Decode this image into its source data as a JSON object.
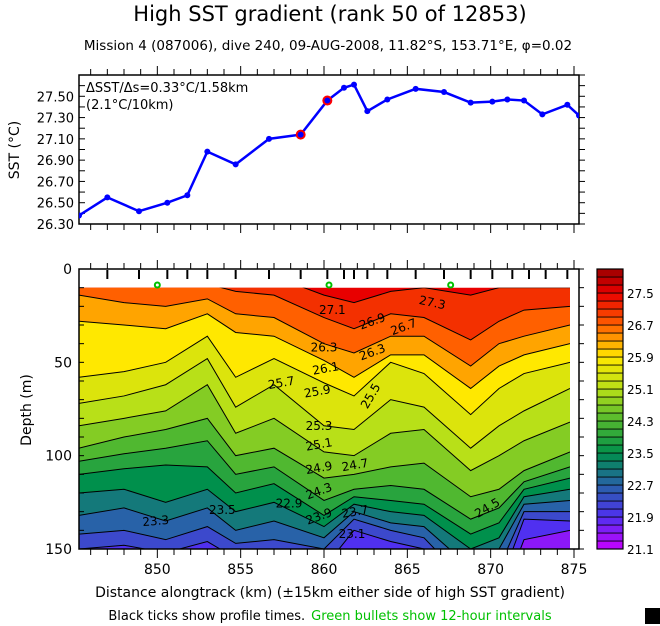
{
  "title": "High SST gradient (rank 50 of 12853)",
  "subtitle": "Mission 4 (087006),  dive 240,  09-AUG-2008,  11.82°S, 153.71°E,  φ=0.02",
  "footer": {
    "black_note": "Black ticks show profile times.",
    "green_note": "Green bullets show 12-hour intervals",
    "green_color": "#00c000"
  },
  "chart_data": [
    {
      "type": "line",
      "ylabel": "SST (°C)",
      "xlim": [
        845.3,
        875.3
      ],
      "ylim": [
        26.3,
        27.7
      ],
      "yticks": [
        "26.30",
        "26.50",
        "26.70",
        "26.90",
        "27.10",
        "27.30",
        "27.50"
      ],
      "annotation": [
        "ΔSST/Δs=0.33°C/1.58km",
        "(2.1°C/10km)"
      ],
      "line_color": "#0000ff",
      "highlight_color": "#ff0000",
      "x": [
        845.3,
        847.0,
        848.9,
        850.6,
        851.8,
        853.0,
        854.7,
        856.7,
        858.6,
        860.2,
        861.2,
        861.8,
        862.6,
        863.8,
        865.5,
        867.2,
        868.8,
        870.1,
        871.0,
        872.0,
        873.1,
        874.6,
        875.3
      ],
      "y": [
        26.38,
        26.55,
        26.42,
        26.5,
        26.57,
        26.98,
        26.86,
        27.1,
        27.14,
        27.46,
        27.58,
        27.61,
        27.36,
        27.47,
        27.57,
        27.54,
        27.44,
        27.45,
        27.47,
        27.46,
        27.33,
        27.42,
        27.32
      ],
      "highlighted_points": [
        8,
        9
      ]
    },
    {
      "type": "contour",
      "xlabel": "Distance alongtrack (km) (±15km either side of high SST gradient)",
      "ylabel": "Depth (m)",
      "xlim": [
        845.3,
        875.3
      ],
      "ylim": [
        150,
        0
      ],
      "xticks": [
        "850",
        "855",
        "860",
        "865",
        "870",
        "875"
      ],
      "yticks": [
        "0",
        "50",
        "100",
        "150"
      ],
      "profile_times_km": [
        847.0,
        848.9,
        850.6,
        851.8,
        853.0,
        854.7,
        856.7,
        858.6,
        860.2,
        861.2,
        861.8,
        862.6,
        863.8,
        865.5,
        867.2,
        868.8,
        870.1,
        871.3,
        872.3,
        873.3,
        874.6
      ],
      "green_bullets_km": [
        850.0,
        860.3,
        867.6
      ],
      "isotherms": [
        27.3,
        26.9,
        26.5,
        26.1,
        25.7,
        25.3,
        24.9,
        24.5,
        24.1,
        23.7,
        23.3,
        22.9,
        22.5,
        22.1,
        21.7
      ],
      "profiles": [
        {
          "x": 845.3,
          "depths": [
            0,
            0,
            14,
            28,
            58,
            72,
            84,
            96,
            103,
            110,
            120,
            132,
            142,
            150,
            160
          ]
        },
        {
          "x": 848.0,
          "depths": [
            0,
            0,
            18,
            30,
            55,
            68,
            80,
            90,
            99,
            107,
            118,
            128,
            140,
            148,
            160
          ]
        },
        {
          "x": 850.5,
          "depths": [
            0,
            0,
            20,
            32,
            50,
            62,
            76,
            86,
            96,
            105,
            125,
            135,
            145,
            152,
            165
          ]
        },
        {
          "x": 853.0,
          "depths": [
            0,
            8,
            16,
            24,
            36,
            48,
            62,
            80,
            92,
            106,
            118,
            128,
            138,
            146,
            160
          ]
        },
        {
          "x": 854.7,
          "depths": [
            0,
            12,
            24,
            34,
            58,
            74,
            88,
            100,
            110,
            120,
            130,
            140,
            147,
            155,
            165
          ]
        },
        {
          "x": 857.0,
          "depths": [
            4,
            14,
            26,
            36,
            48,
            62,
            80,
            96,
            106,
            115,
            125,
            135,
            145,
            150,
            162
          ]
        },
        {
          "x": 860.0,
          "depths": [
            14,
            26,
            40,
            49,
            61,
            84,
            98,
            112,
            124,
            132,
            138,
            144,
            150,
            160,
            170
          ]
        },
        {
          "x": 861.8,
          "depths": [
            18,
            32,
            45,
            58,
            68,
            86,
            100,
            110,
            118,
            122,
            126,
            130,
            134,
            140,
            150
          ]
        },
        {
          "x": 864.0,
          "depths": [
            12,
            24,
            36,
            46,
            50,
            70,
            88,
            106,
            116,
            124,
            130,
            136,
            140,
            146,
            155
          ]
        },
        {
          "x": 866.0,
          "depths": [
            10,
            26,
            36,
            46,
            56,
            74,
            86,
            104,
            118,
            126,
            132,
            138,
            144,
            150,
            160
          ]
        },
        {
          "x": 868.8,
          "depths": [
            14,
            38,
            52,
            64,
            78,
            96,
            108,
            122,
            134,
            142,
            150,
            160,
            170,
            180,
            190
          ]
        },
        {
          "x": 870.5,
          "depths": [
            10,
            28,
            40,
            52,
            64,
            84,
            100,
            118,
            128,
            136,
            144,
            150,
            160,
            170,
            180
          ]
        },
        {
          "x": 872.0,
          "depths": [
            10,
            22,
            36,
            46,
            56,
            76,
            92,
            108,
            114,
            118,
            122,
            126,
            130,
            134,
            145
          ]
        },
        {
          "x": 875.3,
          "depths": [
            10,
            20,
            30,
            40,
            50,
            64,
            82,
            98,
            106,
            112,
            118,
            124,
            130,
            135,
            140
          ]
        }
      ],
      "contour_labels": [
        {
          "text": "27.1",
          "x": 860.5,
          "d": 22,
          "rot": 0
        },
        {
          "text": "27.3",
          "x": 866.5,
          "d": 18,
          "rot": 12
        },
        {
          "text": "26.9",
          "x": 862.9,
          "d": 28,
          "rot": -20
        },
        {
          "text": "26.7",
          "x": 863.7,
          "d": 31,
          "rot": -20
        },
        {
          "text": "26.3",
          "x": 862.9,
          "d": 36,
          "rot": -20
        },
        {
          "text": "26.3",
          "x": 860.0,
          "d": 42,
          "rot": 0
        },
        {
          "text": "26.1",
          "x": 860.1,
          "d": 49,
          "rot": -10
        },
        {
          "text": "25.9",
          "x": 859.6,
          "d": 57,
          "rot": -10
        },
        {
          "text": "25.7",
          "x": 859.6,
          "d": 61,
          "rot": -10
        },
        {
          "text": "25.5",
          "x": 862.8,
          "d": 68,
          "rot": -60
        },
        {
          "text": "25.3",
          "x": 859.7,
          "d": 84,
          "rot": 0
        },
        {
          "text": "25.1",
          "x": 859.7,
          "d": 94,
          "rot": -10
        },
        {
          "text": "24.9",
          "x": 859.7,
          "d": 98,
          "rot": -10
        },
        {
          "text": "24.7",
          "x": 859.7,
          "d": 105,
          "rot": -10
        },
        {
          "text": "24.3",
          "x": 859.7,
          "d": 119,
          "rot": -20
        },
        {
          "text": "23.9",
          "x": 859.7,
          "d": 124,
          "rot": -20
        },
        {
          "text": "23.7",
          "x": 859.7,
          "d": 130,
          "rot": -10
        },
        {
          "text": "23.5",
          "x": 853.9,
          "d": 129,
          "rot": 0
        },
        {
          "text": "23.3",
          "x": 849.9,
          "d": 135,
          "rot": -5
        },
        {
          "text": "24.5",
          "x": 869.8,
          "d": 128,
          "rot": -30
        },
        {
          "text": "23.1",
          "x": 860.6,
          "d": 142,
          "rot": 0
        },
        {
          "text": "22.9",
          "x": 860.6,
          "d": 147,
          "rot": 0
        }
      ]
    },
    {
      "type": "colorbar",
      "range": [
        21.1,
        28.1
      ],
      "step": 0.2,
      "labels": [
        "21.1",
        "21.9",
        "22.7",
        "23.5",
        "24.3",
        "25.1",
        "25.9",
        "26.7",
        "27.5"
      ],
      "color_stops": [
        {
          "v": 21.1,
          "c": "#c800ff"
        },
        {
          "v": 21.9,
          "c": "#5030f0"
        },
        {
          "v": 22.7,
          "c": "#2862a8"
        },
        {
          "v": 23.5,
          "c": "#00904c"
        },
        {
          "v": 24.3,
          "c": "#50b830"
        },
        {
          "v": 25.1,
          "c": "#b8e018"
        },
        {
          "v": 25.9,
          "c": "#ffe800"
        },
        {
          "v": 26.7,
          "c": "#ff6000"
        },
        {
          "v": 27.5,
          "c": "#e80000"
        },
        {
          "v": 28.1,
          "c": "#9c0000"
        }
      ]
    }
  ]
}
